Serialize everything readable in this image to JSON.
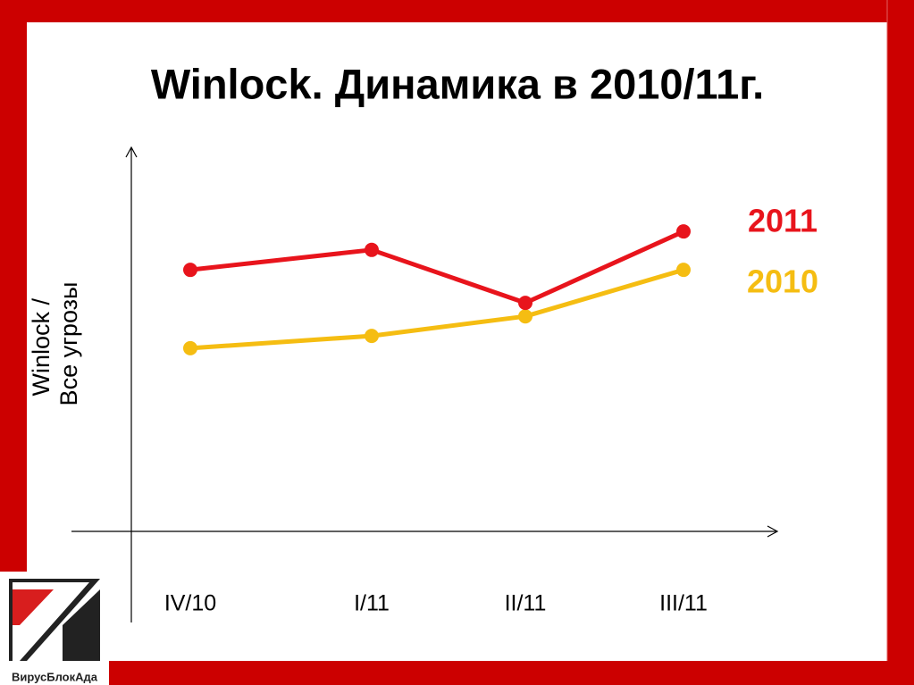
{
  "title": "Winlock. Динамика в 2010/11г.",
  "chart_data": {
    "type": "line",
    "y_label": [
      "Winlock /",
      "Все угрозы"
    ],
    "categories": [
      "IV/10",
      "I/11",
      "II/11",
      "III/11"
    ],
    "series": [
      {
        "name": "2011",
        "color": "#e8141c",
        "values": [
          68.1,
          73.3,
          59.5,
          78.1
        ]
      },
      {
        "name": "2010",
        "color": "#f5bd12",
        "values": [
          47.7,
          50.9,
          56.0,
          68.1
        ]
      }
    ],
    "ylim": [
      0,
      100
    ]
  },
  "logo": {
    "text": "ВирусБлокАда"
  }
}
